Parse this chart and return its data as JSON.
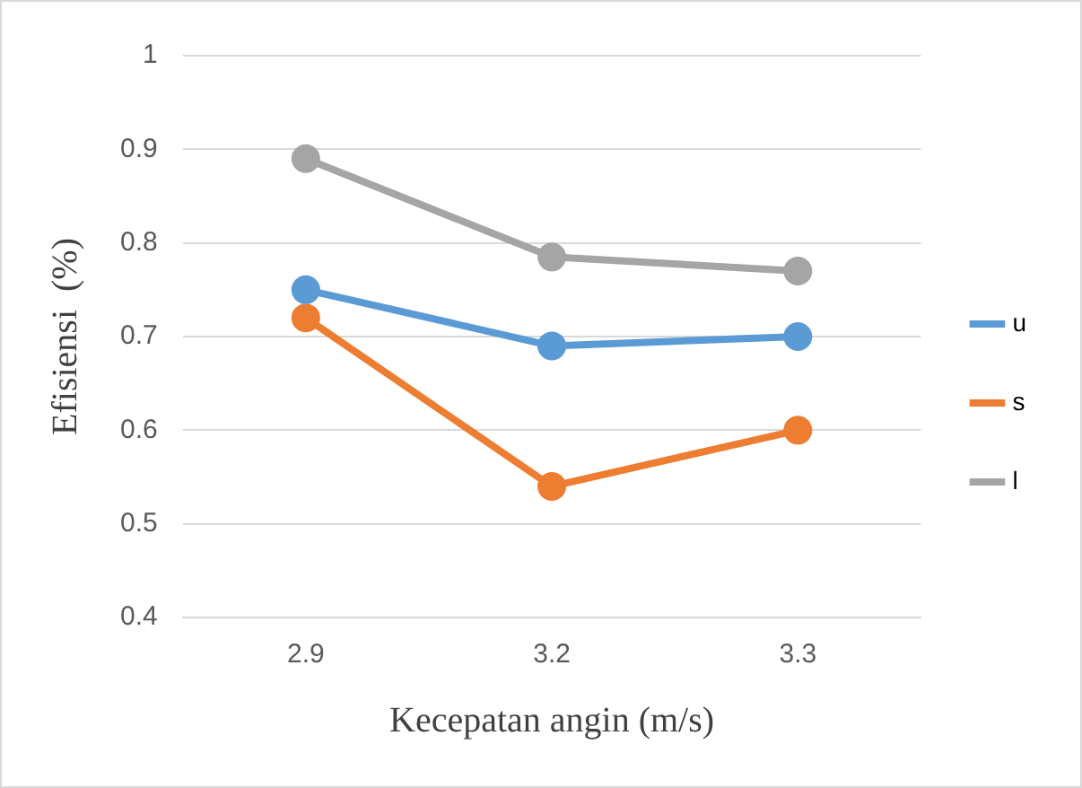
{
  "chart_data": {
    "type": "line",
    "xlabel": "Kecepatan angin (m/s)",
    "ylabel": "Efisiensi  (%)",
    "categories": [
      "2.9",
      "3.2",
      "3.3"
    ],
    "series": [
      {
        "name": "u",
        "color": "#5b9bd5",
        "values": [
          0.75,
          0.69,
          0.7
        ]
      },
      {
        "name": "s",
        "color": "#ed7d31",
        "values": [
          0.72,
          0.54,
          0.6
        ]
      },
      {
        "name": "l",
        "color": "#a5a5a5",
        "values": [
          0.89,
          0.785,
          0.77
        ]
      }
    ],
    "ylim": [
      0.4,
      1
    ],
    "yticks": [
      0.4,
      0.5,
      0.6,
      0.7,
      0.8,
      0.9,
      1
    ],
    "grid": "y",
    "legend": "right",
    "marker": "circle",
    "line_style": "solid"
  }
}
